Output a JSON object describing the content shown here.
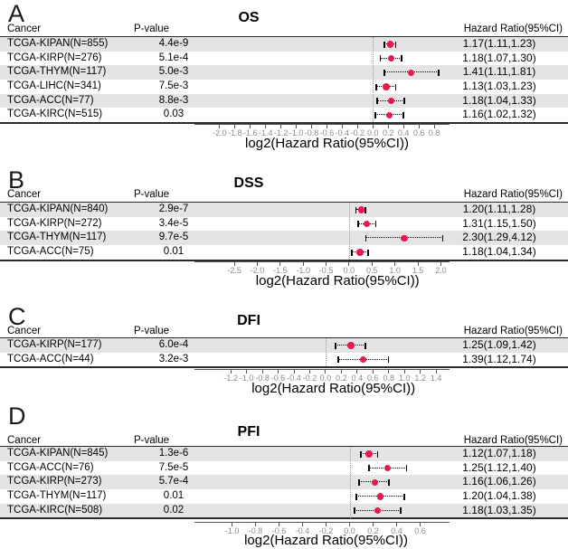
{
  "colors": {
    "marker_dot": "#e8194b",
    "row_alternate": "#e4e4e4",
    "tick_label": "#8c8c8c",
    "zero_line": "#999999",
    "ci_line": "#000000"
  },
  "chart_data": [
    {
      "type": "scatter",
      "subtype": "forest-plot",
      "panel_label": "A",
      "title": "OS",
      "xlabel": "log2(Hazard Ratio(95%CI))",
      "columns": {
        "cancer": "Cancer",
        "pvalue": "P-value",
        "hr": "Hazard Ratio(95%CI)"
      },
      "x_domain": [
        -2.33,
        1.0
      ],
      "x_tick_labels": [
        "-2.0",
        "-1.8",
        "-1.6",
        "-1.4",
        "-1.2",
        "-1.0",
        "-0.8",
        "-0.6",
        "-0.4",
        "-0.2",
        "0.0",
        "0.2",
        "0.4",
        "0.6",
        "0.8"
      ],
      "zero_line": 0,
      "grid": false,
      "legend": false,
      "rows": [
        {
          "cancer": "TCGA-KIPAN(N=855)",
          "pvalue": "4.4e-9",
          "hr": 1.17,
          "ci_low": 1.11,
          "ci_high": 1.23,
          "hr_text": "1.17(1.11,1.23)"
        },
        {
          "cancer": "TCGA-KIRP(N=276)",
          "pvalue": "5.1e-4",
          "hr": 1.18,
          "ci_low": 1.07,
          "ci_high": 1.3,
          "hr_text": "1.18(1.07,1.30)"
        },
        {
          "cancer": "TCGA-THYM(N=117)",
          "pvalue": "5.0e-3",
          "hr": 1.41,
          "ci_low": 1.11,
          "ci_high": 1.81,
          "hr_text": "1.41(1.11,1.81)"
        },
        {
          "cancer": "TCGA-LIHC(N=341)",
          "pvalue": "7.5e-3",
          "hr": 1.13,
          "ci_low": 1.03,
          "ci_high": 1.23,
          "hr_text": "1.13(1.03,1.23)"
        },
        {
          "cancer": "TCGA-ACC(N=77)",
          "pvalue": "8.8e-3",
          "hr": 1.18,
          "ci_low": 1.04,
          "ci_high": 1.33,
          "hr_text": "1.18(1.04,1.33)"
        },
        {
          "cancer": "TCGA-KIRC(N=515)",
          "pvalue": "0.03",
          "hr": 1.16,
          "ci_low": 1.02,
          "ci_high": 1.32,
          "hr_text": "1.16(1.02,1.32)"
        }
      ]
    },
    {
      "type": "scatter",
      "subtype": "forest-plot",
      "panel_label": "B",
      "title": "DSS",
      "xlabel": "log2(Hazard Ratio(95%CI))",
      "columns": {
        "cancer": "Cancer",
        "pvalue": "P-value",
        "hr": "Hazard Ratio(95%CI)"
      },
      "x_domain": [
        -3.37,
        2.19
      ],
      "x_tick_labels": [
        "-2.5",
        "-2.0",
        "-1.5",
        "-1.0",
        "-0.5",
        "0.0",
        "0.5",
        "1.0",
        "1.5",
        "2.0"
      ],
      "zero_line": 0,
      "grid": false,
      "legend": false,
      "rows": [
        {
          "cancer": "TCGA-KIPAN(N=840)",
          "pvalue": "2.9e-7",
          "hr": 1.2,
          "ci_low": 1.11,
          "ci_high": 1.28,
          "hr_text": "1.20(1.11,1.28)"
        },
        {
          "cancer": "TCGA-KIRP(N=272)",
          "pvalue": "3.4e-5",
          "hr": 1.31,
          "ci_low": 1.15,
          "ci_high": 1.5,
          "hr_text": "1.31(1.15,1.50)"
        },
        {
          "cancer": "TCGA-THYM(N=117)",
          "pvalue": "9.7e-5",
          "hr": 2.3,
          "ci_low": 1.29,
          "ci_high": 4.12,
          "hr_text": "2.30(1.29,4.12)"
        },
        {
          "cancer": "TCGA-ACC(N=75)",
          "pvalue": "0.01",
          "hr": 1.18,
          "ci_low": 1.04,
          "ci_high": 1.34,
          "hr_text": "1.18(1.04,1.34)"
        }
      ]
    },
    {
      "type": "scatter",
      "subtype": "forest-plot",
      "panel_label": "C",
      "title": "DFI",
      "xlabel": "log2(Hazard Ratio(95%CI))",
      "columns": {
        "cancer": "Cancer",
        "pvalue": "P-value",
        "hr": "Hazard Ratio(95%CI)"
      },
      "x_domain": [
        -1.66,
        1.57
      ],
      "x_tick_labels": [
        "-1.2",
        "-1.0",
        "-0.8",
        "-0.6",
        "-0.4",
        "-0.2",
        "0.0",
        "0.2",
        "0.4",
        "0.6",
        "0.8",
        "1.0",
        "1.2",
        "1.4"
      ],
      "zero_line": 0,
      "grid": false,
      "legend": false,
      "rows": [
        {
          "cancer": "TCGA-KIRP(N=177)",
          "pvalue": "6.0e-4",
          "hr": 1.25,
          "ci_low": 1.09,
          "ci_high": 1.42,
          "hr_text": "1.25(1.09,1.42)"
        },
        {
          "cancer": "TCGA-ACC(N=44)",
          "pvalue": "3.2e-3",
          "hr": 1.39,
          "ci_low": 1.12,
          "ci_high": 1.74,
          "hr_text": "1.39(1.12,1.74)"
        }
      ]
    },
    {
      "type": "scatter",
      "subtype": "forest-plot",
      "panel_label": "D",
      "title": "PFI",
      "xlabel": "log2(Hazard Ratio(95%CI))",
      "columns": {
        "cancer": "Cancer",
        "pvalue": "P-value",
        "hr": "Hazard Ratio(95%CI)"
      },
      "x_domain": [
        -1.32,
        0.85
      ],
      "x_tick_labels": [
        "-1.0",
        "-0.8",
        "-0.6",
        "-0.4",
        "-0.2",
        "0.0",
        "0.2",
        "0.4",
        "0.6"
      ],
      "zero_line": 0,
      "grid": false,
      "legend": false,
      "rows": [
        {
          "cancer": "TCGA-KIPAN(N=845)",
          "pvalue": "1.3e-6",
          "hr": 1.12,
          "ci_low": 1.07,
          "ci_high": 1.18,
          "hr_text": "1.12(1.07,1.18)"
        },
        {
          "cancer": "TCGA-ACC(N=76)",
          "pvalue": "7.5e-5",
          "hr": 1.25,
          "ci_low": 1.12,
          "ci_high": 1.4,
          "hr_text": "1.25(1.12,1.40)"
        },
        {
          "cancer": "TCGA-KIRP(N=273)",
          "pvalue": "5.7e-4",
          "hr": 1.16,
          "ci_low": 1.06,
          "ci_high": 1.26,
          "hr_text": "1.16(1.06,1.26)"
        },
        {
          "cancer": "TCGA-THYM(N=117)",
          "pvalue": "0.01",
          "hr": 1.2,
          "ci_low": 1.04,
          "ci_high": 1.38,
          "hr_text": "1.20(1.04,1.38)"
        },
        {
          "cancer": "TCGA-KIRC(N=508)",
          "pvalue": "0.02",
          "hr": 1.18,
          "ci_low": 1.03,
          "ci_high": 1.35,
          "hr_text": "1.18(1.03,1.35)"
        }
      ]
    }
  ]
}
